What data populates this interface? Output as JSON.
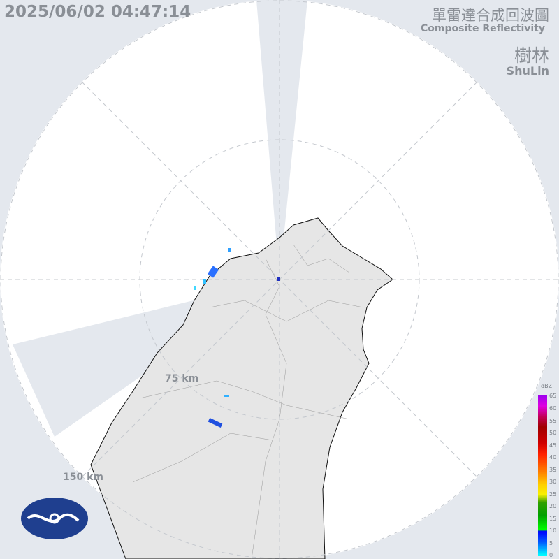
{
  "timestamp": "2025/06/02 04:47:14",
  "title_zh": "單雷達合成回波圖",
  "title_en": "Composite Reflectivity",
  "site_zh": "樹林",
  "site_en": "ShuLin",
  "rings": [
    "75 km",
    "150 km"
  ],
  "legend": {
    "unit": "dBZ",
    "ticks": [
      "65",
      "60",
      "55",
      "50",
      "45",
      "40",
      "35",
      "30",
      "25",
      "20",
      "15",
      "10",
      "5",
      "0"
    ]
  },
  "colors": {
    "background": "#e4e8ee",
    "coverage": "#ffffff",
    "land": "#e6e6e6",
    "logo": "#1f3f8f"
  }
}
